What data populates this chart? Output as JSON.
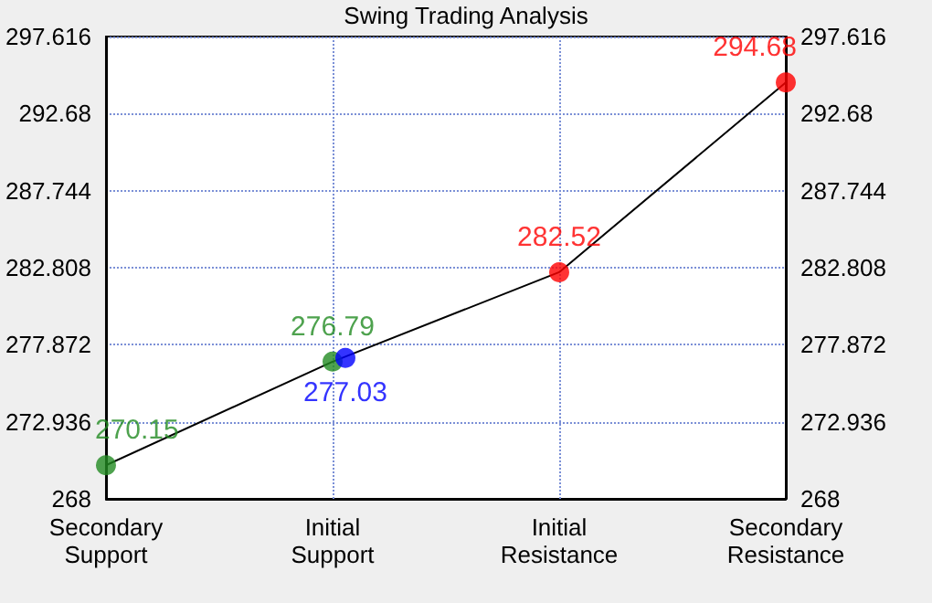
{
  "chart_data": {
    "type": "scatter",
    "title": "Swing Trading Analysis",
    "categories": [
      "Secondary\nSupport",
      "Initial\nSupport",
      "Initial\nResistance",
      "Secondary\nResistance"
    ],
    "series": [
      {
        "type": "line",
        "color": "#000000",
        "marker": "none",
        "values": [
          270.15,
          276.79,
          282.52,
          294.68
        ]
      },
      {
        "color": "#228b22",
        "values": [
          270.15,
          276.79,
          null,
          null
        ],
        "value_labels": [
          "270.15",
          "276.79",
          null,
          null
        ]
      },
      {
        "color": "#0000ff",
        "values": [
          null,
          277.03,
          null,
          null
        ],
        "value_labels": [
          null,
          "277.03",
          null,
          null
        ]
      },
      {
        "color": "#ff0000",
        "values": [
          null,
          null,
          282.52,
          294.68
        ],
        "value_labels": [
          null,
          null,
          "282.52",
          "294.68"
        ]
      }
    ],
    "marker": "circle",
    "ylim": [
      268,
      297.616
    ],
    "yticks": [
      268,
      272.936,
      277.872,
      282.808,
      287.744,
      292.68,
      297.616
    ],
    "y2lim": [
      268,
      297.616
    ],
    "y2ticks": [
      268,
      272.936,
      277.872,
      282.808,
      287.744,
      292.68,
      297.616
    ],
    "grid": true
  }
}
